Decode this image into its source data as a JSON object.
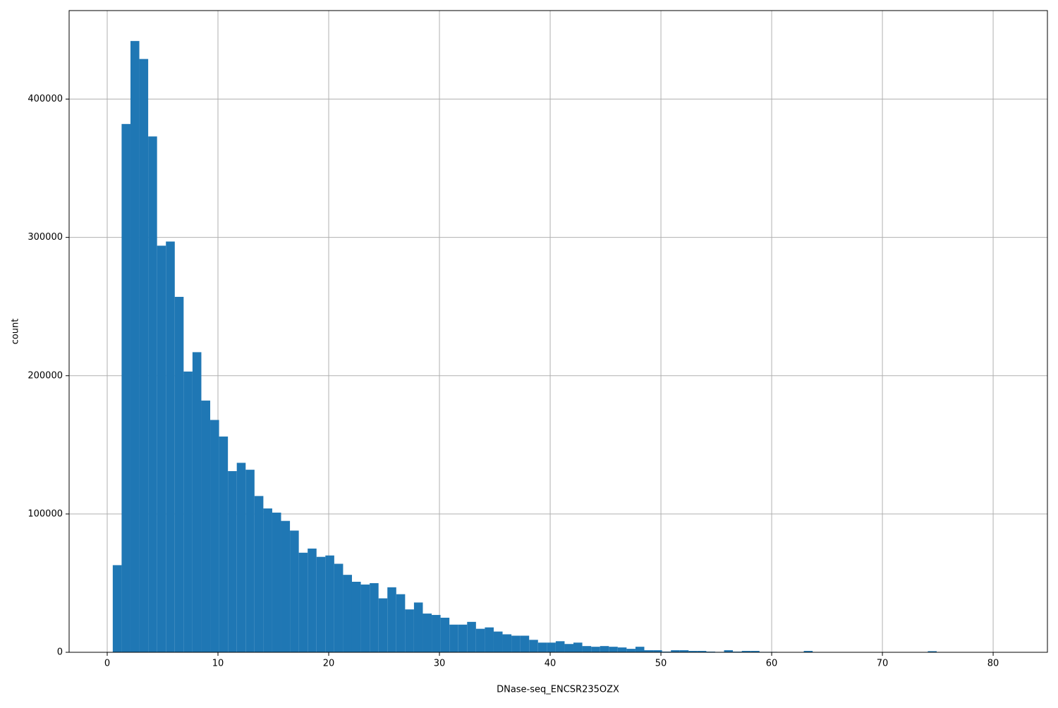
{
  "chart_data": {
    "type": "histogram",
    "xlabel": "DNase-seq_ENCSR235OZX",
    "ylabel": "count",
    "color": "#1f77b4",
    "grid": true,
    "xlim": [
      -3.44,
      84.9
    ],
    "ylim": [
      0,
      464000
    ],
    "xticks": [
      0,
      10,
      20,
      30,
      40,
      50,
      60,
      70,
      80
    ],
    "yticks": [
      0,
      100000,
      200000,
      300000,
      400000
    ],
    "bins": [
      0.5,
      1.3,
      2.1,
      2.9,
      3.7,
      4.5,
      5.3,
      6.1,
      6.9,
      7.7,
      8.5,
      9.3,
      10.1,
      10.9,
      11.7,
      12.5,
      13.3,
      14.1,
      14.9,
      15.7,
      16.5,
      17.3,
      18.1,
      18.9,
      19.7,
      20.5,
      21.3,
      22.1,
      22.9,
      23.7,
      24.5,
      25.3,
      26.1,
      26.9,
      27.7,
      28.5,
      29.3,
      30.1,
      30.9,
      31.7,
      32.5,
      33.3,
      34.1,
      34.9,
      35.7,
      36.5,
      37.3,
      38.1,
      38.9,
      39.7,
      40.5,
      41.3,
      42.1,
      42.9,
      43.7,
      44.5,
      45.3,
      46.1,
      46.9,
      47.7,
      48.5,
      49.3,
      50.1,
      50.9,
      51.7,
      52.5,
      53.3,
      54.1,
      54.9,
      55.7,
      56.5,
      57.3,
      58.1,
      58.9,
      59.7,
      60.5,
      61.3,
      62.1,
      62.9,
      63.7,
      64.5,
      65.3,
      66.1,
      66.9,
      67.7,
      68.5,
      69.3,
      70.1,
      70.9,
      71.7,
      72.5,
      73.3,
      74.1,
      74.9,
      75.7,
      76.5,
      77.3,
      78.1,
      78.9,
      79.7,
      80.5
    ],
    "counts": [
      63000,
      382000,
      442000,
      429000,
      373000,
      294000,
      297000,
      257000,
      203000,
      217000,
      182000,
      168000,
      156000,
      131000,
      137000,
      132000,
      113000,
      104000,
      101000,
      95000,
      88000,
      72000,
      75000,
      69000,
      70000,
      64000,
      56000,
      51000,
      49000,
      50000,
      39000,
      47000,
      42000,
      31000,
      36000,
      28000,
      27000,
      25000,
      20000,
      20000,
      22000,
      17000,
      18000,
      15000,
      13000,
      12000,
      12000,
      9000,
      7000,
      7000,
      8000,
      6000,
      7000,
      4500,
      4000,
      4500,
      4000,
      3500,
      2500,
      4000,
      1500,
      1500,
      500,
      1500,
      1500,
      1000,
      1000,
      500,
      300,
      1500,
      500,
      1000,
      1000,
      300,
      300,
      200,
      200,
      200,
      1000,
      200,
      100,
      100,
      100,
      100,
      100,
      100,
      100,
      100,
      100,
      100,
      100,
      100,
      800,
      100,
      100,
      100,
      100,
      100,
      100,
      100
    ]
  }
}
